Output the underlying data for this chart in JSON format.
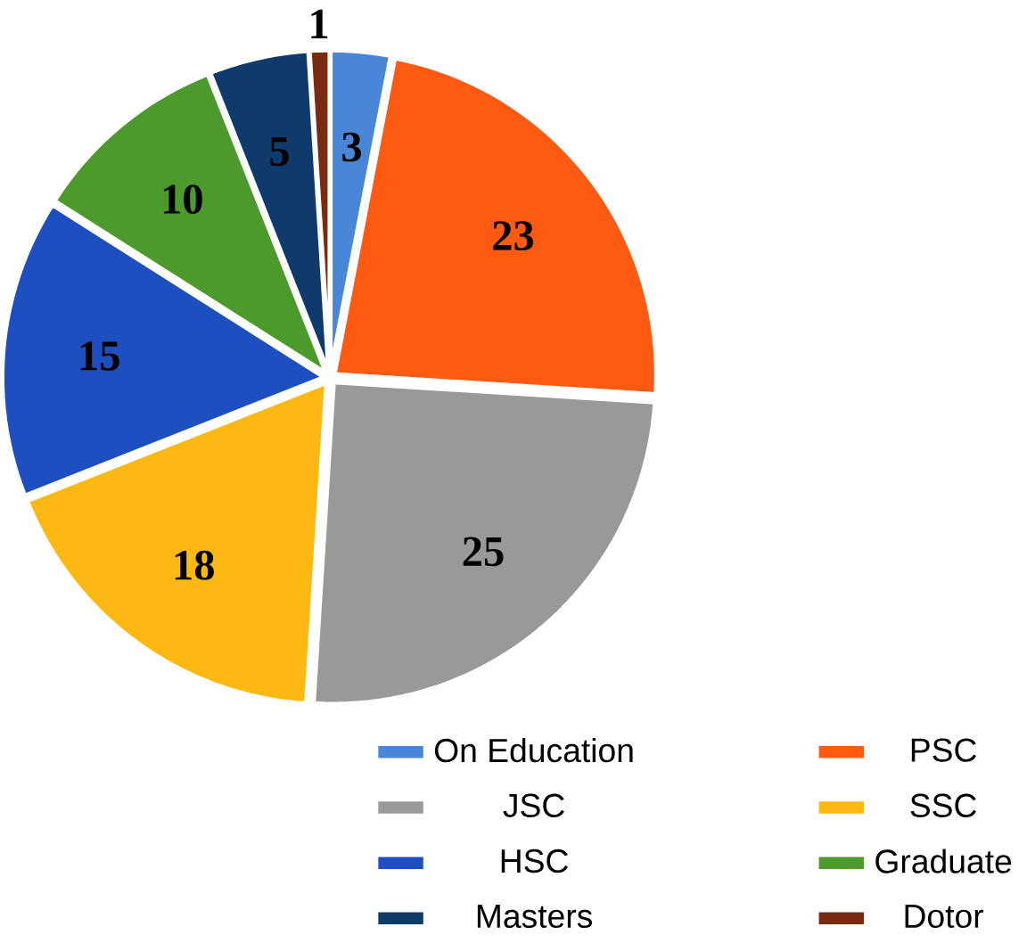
{
  "chart_data": {
    "type": "pie",
    "categories": [
      "On Education",
      "PSC",
      "JSC",
      "SSC",
      "HSC",
      "Graduate",
      "Masters",
      "Dotor"
    ],
    "values": [
      3,
      23,
      25,
      18,
      15,
      10,
      5,
      1
    ],
    "colors": [
      "#4a86d8",
      "#fe5a12",
      "#999999",
      "#fdb812",
      "#1e4fc0",
      "#4d9a2c",
      "#0f3a6c",
      "#7a2a10"
    ],
    "data_labels": true,
    "legend": "bottom"
  }
}
